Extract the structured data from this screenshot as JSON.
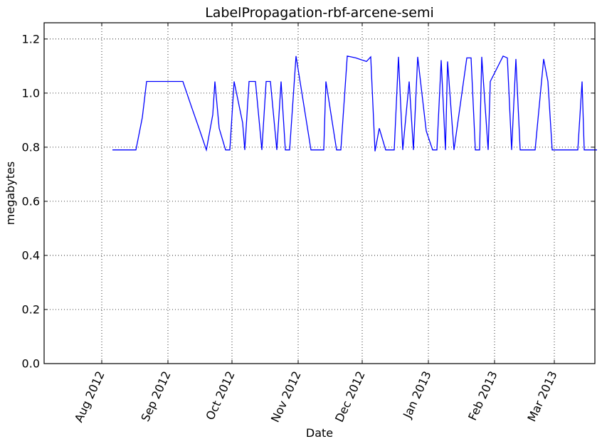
{
  "chart_data": {
    "type": "line",
    "title": "LabelPropagation-rbf-arcene-semi",
    "xlabel": "Date",
    "ylabel": "megabytes",
    "xlim": [
      "2012-07-05",
      "2013-03-20"
    ],
    "ylim": [
      0,
      1.26
    ],
    "grid": true,
    "x_ticks": [
      "2012-08-01",
      "2012-09-01",
      "2012-10-01",
      "2012-11-01",
      "2012-12-01",
      "2013-01-01",
      "2013-02-01",
      "2013-03-01"
    ],
    "x_tick_labels": [
      "Aug 2012",
      "Sep 2012",
      "Oct 2012",
      "Nov 2012",
      "Dec 2012",
      "Jan 2013",
      "Feb 2013",
      "Mar 2013"
    ],
    "y_ticks": [
      0.0,
      0.2,
      0.4,
      0.6,
      0.8,
      1.0,
      1.2
    ],
    "y_tick_labels": [
      "0.0",
      "0.2",
      "0.4",
      "0.6",
      "0.8",
      "1.0",
      "1.2"
    ],
    "series": [
      {
        "color": "#0000ff",
        "points": [
          [
            "2012-08-06",
            0.79
          ],
          [
            "2012-08-17",
            0.79
          ],
          [
            "2012-08-20",
            0.91
          ],
          [
            "2012-08-22",
            1.043
          ],
          [
            "2012-09-05",
            1.043
          ],
          [
            "2012-09-08",
            1.043
          ],
          [
            "2012-09-12",
            0.95
          ],
          [
            "2012-09-16",
            0.86
          ],
          [
            "2012-09-19",
            0.79
          ],
          [
            "2012-09-22",
            0.92
          ],
          [
            "2012-09-23",
            1.043
          ],
          [
            "2012-09-25",
            0.87
          ],
          [
            "2012-09-28",
            0.79
          ],
          [
            "2012-09-30",
            0.79
          ],
          [
            "2012-10-02",
            1.043
          ],
          [
            "2012-10-06",
            0.89
          ],
          [
            "2012-10-07",
            0.79
          ],
          [
            "2012-10-09",
            1.043
          ],
          [
            "2012-10-12",
            1.043
          ],
          [
            "2012-10-15",
            0.79
          ],
          [
            "2012-10-17",
            1.043
          ],
          [
            "2012-10-19",
            1.043
          ],
          [
            "2012-10-22",
            0.79
          ],
          [
            "2012-10-24",
            1.043
          ],
          [
            "2012-10-26",
            0.79
          ],
          [
            "2012-10-28",
            0.79
          ],
          [
            "2012-10-31",
            1.137
          ],
          [
            "2012-11-07",
            0.79
          ],
          [
            "2012-11-10",
            0.79
          ],
          [
            "2012-11-13",
            0.79
          ],
          [
            "2012-11-14",
            1.043
          ],
          [
            "2012-11-19",
            0.79
          ],
          [
            "2012-11-21",
            0.79
          ],
          [
            "2012-11-24",
            1.137
          ],
          [
            "2012-11-28",
            1.13
          ],
          [
            "2012-12-03",
            1.117
          ],
          [
            "2012-12-05",
            1.134
          ],
          [
            "2012-12-07",
            0.785
          ],
          [
            "2012-12-09",
            0.87
          ],
          [
            "2012-12-12",
            0.79
          ],
          [
            "2012-12-16",
            0.79
          ],
          [
            "2012-12-18",
            1.134
          ],
          [
            "2012-12-20",
            0.79
          ],
          [
            "2012-12-23",
            1.043
          ],
          [
            "2012-12-25",
            0.79
          ],
          [
            "2012-12-27",
            1.134
          ],
          [
            "2012-12-31",
            0.86
          ],
          [
            "2013-01-03",
            0.79
          ],
          [
            "2013-01-05",
            0.79
          ],
          [
            "2013-01-07",
            1.122
          ],
          [
            "2013-01-09",
            0.79
          ],
          [
            "2013-01-10",
            1.117
          ],
          [
            "2013-01-13",
            0.79
          ],
          [
            "2013-01-19",
            1.13
          ],
          [
            "2013-01-21",
            1.13
          ],
          [
            "2013-01-23",
            0.79
          ],
          [
            "2013-01-25",
            0.79
          ],
          [
            "2013-01-26",
            1.134
          ],
          [
            "2013-01-29",
            0.79
          ],
          [
            "2013-01-30",
            1.043
          ],
          [
            "2013-02-05",
            1.137
          ],
          [
            "2013-02-07",
            1.13
          ],
          [
            "2013-02-09",
            0.79
          ],
          [
            "2013-02-11",
            1.126
          ],
          [
            "2013-02-13",
            0.79
          ],
          [
            "2013-02-18",
            0.79
          ],
          [
            "2013-02-20",
            0.79
          ],
          [
            "2013-02-24",
            1.126
          ],
          [
            "2013-02-26",
            1.043
          ],
          [
            "2013-02-28",
            0.79
          ],
          [
            "2013-03-03",
            0.79
          ],
          [
            "2013-03-10",
            0.79
          ],
          [
            "2013-03-12",
            0.79
          ],
          [
            "2013-03-14",
            1.043
          ],
          [
            "2013-03-15",
            0.79
          ],
          [
            "2013-03-21",
            0.79
          ]
        ]
      }
    ]
  }
}
